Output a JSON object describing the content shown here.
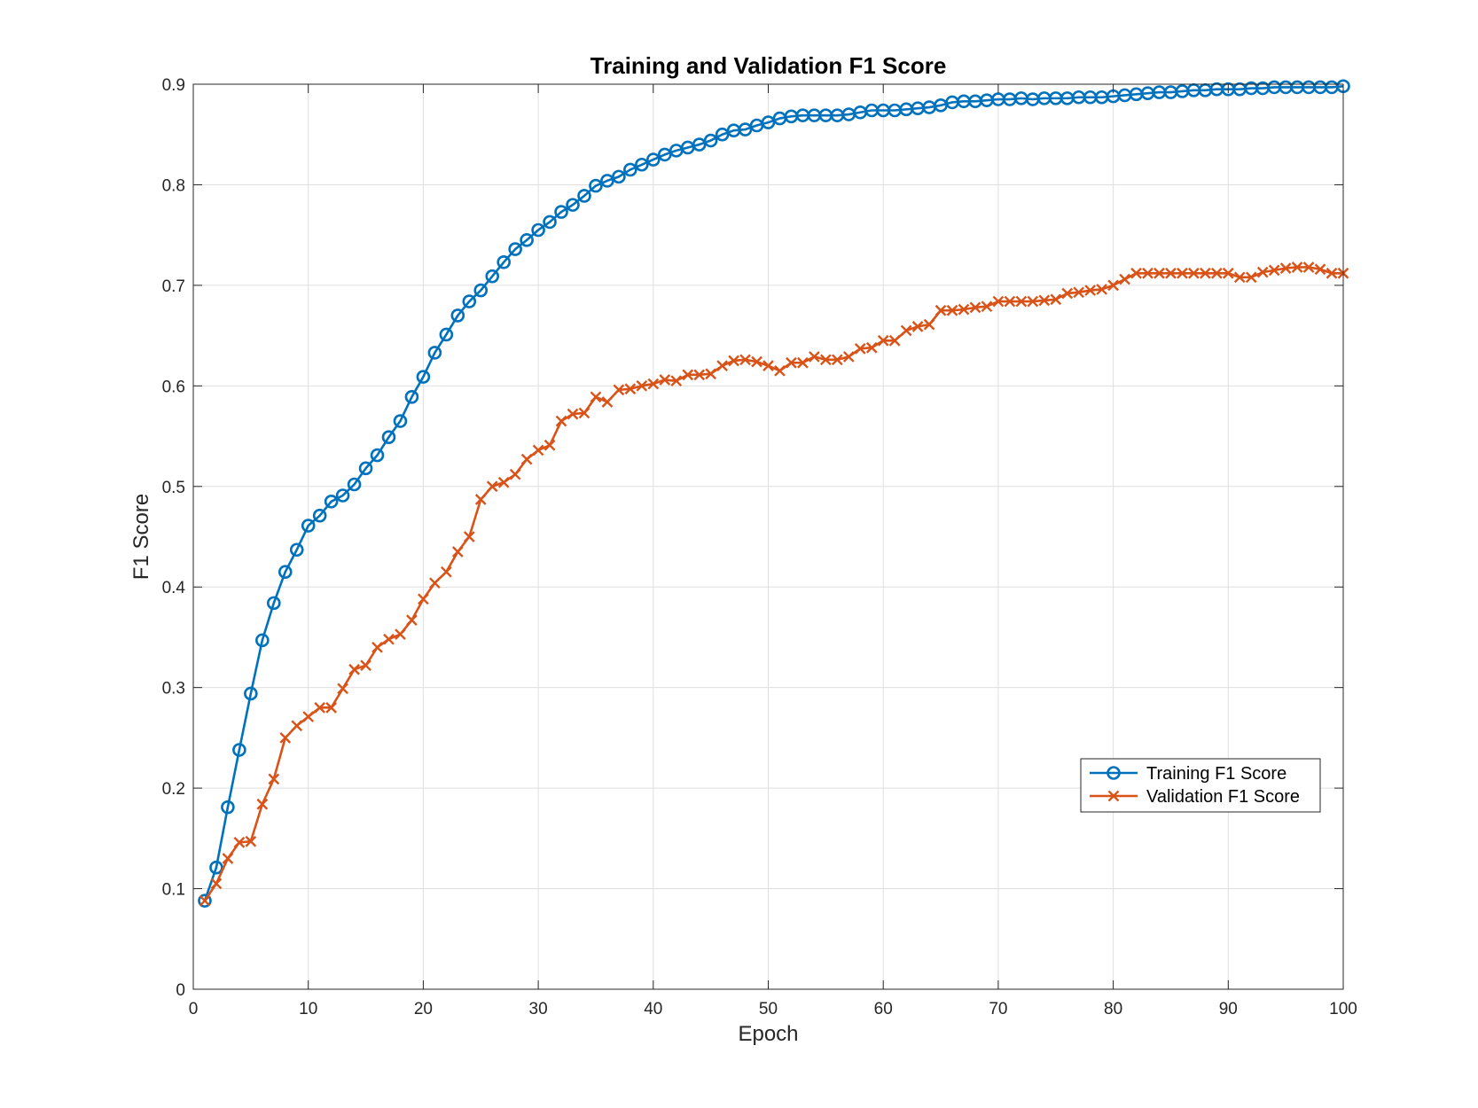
{
  "chart_data": {
    "type": "line",
    "title": "Training and Validation F1 Score",
    "xlabel": "Epoch",
    "ylabel": "F1 Score",
    "xlim": [
      0,
      100
    ],
    "ylim": [
      0,
      0.9
    ],
    "grid": true,
    "legend_position": "lower-right",
    "xticks": [
      0,
      10,
      20,
      30,
      40,
      50,
      60,
      70,
      80,
      90,
      100
    ],
    "yticks": [
      0,
      0.1,
      0.2,
      0.3,
      0.4,
      0.5,
      0.6,
      0.7,
      0.8,
      0.9
    ],
    "xtick_labels": [
      "0",
      "10",
      "20",
      "30",
      "40",
      "50",
      "60",
      "70",
      "80",
      "90",
      "100"
    ],
    "ytick_labels": [
      "0",
      "0.1",
      "0.2",
      "0.3",
      "0.4",
      "0.5",
      "0.6",
      "0.7",
      "0.8",
      "0.9"
    ],
    "x": [
      1,
      2,
      3,
      4,
      5,
      6,
      7,
      8,
      9,
      10,
      11,
      12,
      13,
      14,
      15,
      16,
      17,
      18,
      19,
      20,
      21,
      22,
      23,
      24,
      25,
      26,
      27,
      28,
      29,
      30,
      31,
      32,
      33,
      34,
      35,
      36,
      37,
      38,
      39,
      40,
      41,
      42,
      43,
      44,
      45,
      46,
      47,
      48,
      49,
      50,
      51,
      52,
      53,
      54,
      55,
      56,
      57,
      58,
      59,
      60,
      61,
      62,
      63,
      64,
      65,
      66,
      67,
      68,
      69,
      70,
      71,
      72,
      73,
      74,
      75,
      76,
      77,
      78,
      79,
      80,
      81,
      82,
      83,
      84,
      85,
      86,
      87,
      88,
      89,
      90,
      91,
      92,
      93,
      94,
      95,
      96,
      97,
      98,
      99,
      100
    ],
    "series": [
      {
        "name": "Training F1 Score",
        "color": "#0072BD",
        "marker": "circle",
        "values": [
          0.088,
          0.121,
          0.181,
          0.238,
          0.294,
          0.347,
          0.384,
          0.415,
          0.437,
          0.461,
          0.471,
          0.485,
          0.491,
          0.502,
          0.518,
          0.531,
          0.549,
          0.565,
          0.589,
          0.609,
          0.633,
          0.651,
          0.67,
          0.684,
          0.695,
          0.709,
          0.723,
          0.736,
          0.745,
          0.755,
          0.763,
          0.773,
          0.78,
          0.789,
          0.799,
          0.804,
          0.808,
          0.815,
          0.82,
          0.825,
          0.83,
          0.834,
          0.837,
          0.84,
          0.844,
          0.85,
          0.854,
          0.855,
          0.859,
          0.862,
          0.866,
          0.868,
          0.869,
          0.869,
          0.869,
          0.869,
          0.87,
          0.872,
          0.874,
          0.874,
          0.874,
          0.875,
          0.876,
          0.877,
          0.879,
          0.882,
          0.883,
          0.883,
          0.884,
          0.885,
          0.885,
          0.886,
          0.885,
          0.886,
          0.886,
          0.886,
          0.887,
          0.887,
          0.887,
          0.888,
          0.889,
          0.89,
          0.891,
          0.892,
          0.892,
          0.893,
          0.894,
          0.894,
          0.895,
          0.895,
          0.895,
          0.896,
          0.896,
          0.897,
          0.897,
          0.897,
          0.897,
          0.897,
          0.897,
          0.898
        ]
      },
      {
        "name": "Validation F1 Score",
        "color": "#D95319",
        "marker": "x",
        "values": [
          0.088,
          0.105,
          0.13,
          0.146,
          0.147,
          0.184,
          0.209,
          0.25,
          0.262,
          0.271,
          0.28,
          0.28,
          0.299,
          0.318,
          0.322,
          0.34,
          0.348,
          0.353,
          0.367,
          0.388,
          0.404,
          0.415,
          0.435,
          0.45,
          0.487,
          0.5,
          0.504,
          0.512,
          0.527,
          0.536,
          0.541,
          0.565,
          0.572,
          0.573,
          0.589,
          0.584,
          0.596,
          0.597,
          0.6,
          0.602,
          0.606,
          0.605,
          0.611,
          0.611,
          0.612,
          0.62,
          0.625,
          0.626,
          0.624,
          0.62,
          0.615,
          0.623,
          0.623,
          0.629,
          0.626,
          0.626,
          0.629,
          0.637,
          0.638,
          0.645,
          0.645,
          0.655,
          0.659,
          0.661,
          0.675,
          0.675,
          0.676,
          0.678,
          0.679,
          0.684,
          0.684,
          0.684,
          0.684,
          0.685,
          0.686,
          0.692,
          0.693,
          0.695,
          0.696,
          0.7,
          0.706,
          0.712,
          0.712,
          0.712,
          0.712,
          0.712,
          0.712,
          0.712,
          0.712,
          0.712,
          0.708,
          0.708,
          0.713,
          0.715,
          0.717,
          0.718,
          0.718,
          0.716,
          0.712,
          0.712
        ]
      }
    ]
  }
}
